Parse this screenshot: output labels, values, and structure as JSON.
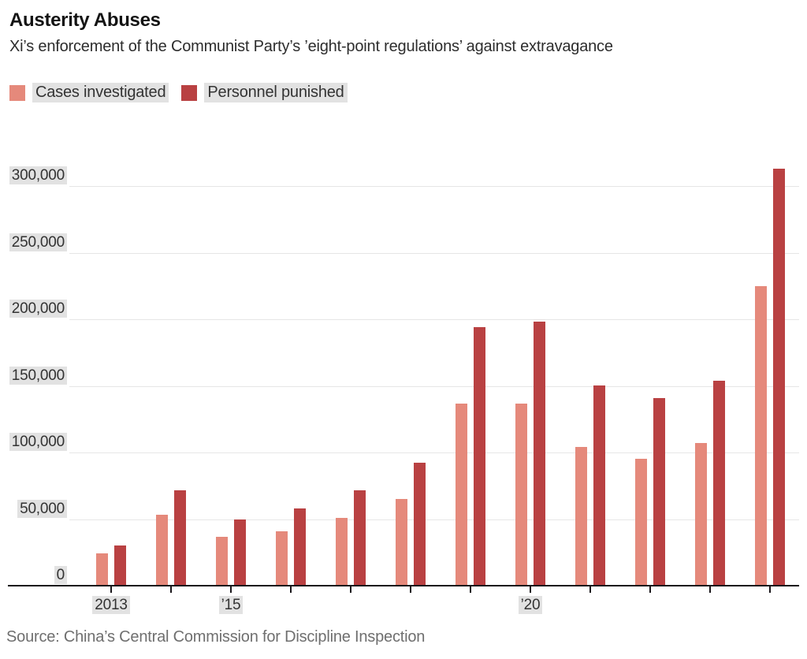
{
  "title": "Austerity Abuses",
  "subtitle": "Xi’s enforcement of the Communist Party’s ’eight-point regulations’ against extravagance",
  "legend": {
    "items": [
      {
        "label": "Cases investigated",
        "color": "#E5897B"
      },
      {
        "label": "Personnel punished",
        "color": "#B94142"
      }
    ]
  },
  "source": "Source: China’s Central Commission for Discipline Inspection",
  "chart_data": {
    "type": "bar",
    "title": "Austerity Abuses",
    "subtitle": "Xi’s enforcement of the Communist Party’s ’eight-point regulations’ against extravagance",
    "categories": [
      "2013",
      "2014",
      "2015",
      "2016",
      "2017",
      "2018",
      "2019",
      "2020",
      "2021",
      "2022",
      "2023",
      "2024"
    ],
    "series": [
      {
        "name": "Cases investigated",
        "color": "#E5897B",
        "values": [
          24500,
          53000,
          36900,
          40800,
          51000,
          65200,
          136500,
          136500,
          104000,
          95000,
          107000,
          225000
        ]
      },
      {
        "name": "Personnel punished",
        "color": "#B94142",
        "values": [
          30400,
          71700,
          49500,
          57700,
          71600,
          92200,
          194000,
          198000,
          150000,
          141000,
          154000,
          313000
        ]
      }
    ],
    "xlabel": "",
    "ylabel": "",
    "ylim": [
      0,
      300000
    ],
    "yticks": [
      {
        "value": 0,
        "label": "0"
      },
      {
        "value": 50000,
        "label": "50,000"
      },
      {
        "value": 100000,
        "label": "100,000"
      },
      {
        "value": 150000,
        "label": "150,000"
      },
      {
        "value": 200000,
        "label": "200,000"
      },
      {
        "value": 250000,
        "label": "250,000"
      },
      {
        "value": 300000,
        "label": "300,000"
      }
    ],
    "xticks_labeled": [
      {
        "index": 0,
        "label": "2013"
      },
      {
        "index": 2,
        "label": "’15"
      },
      {
        "index": 7,
        "label": "’20"
      }
    ],
    "grid": "horizontal",
    "legend_position": "top-left"
  }
}
